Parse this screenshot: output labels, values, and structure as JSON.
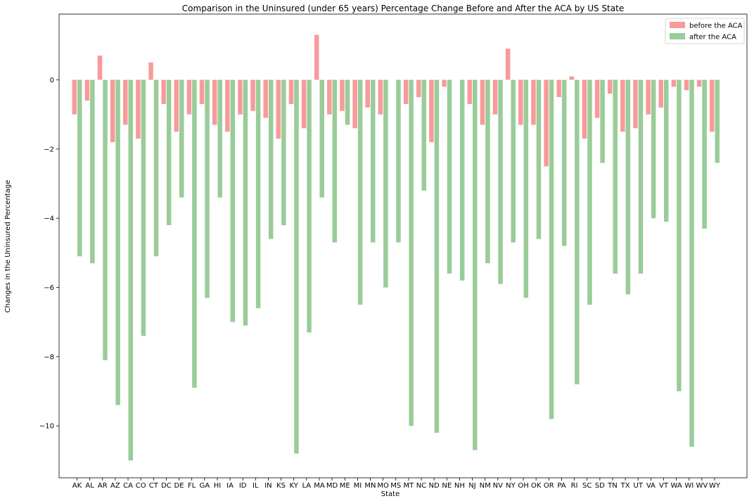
{
  "chart_data": {
    "type": "bar",
    "title": "Comparison in the Uninsured (under 65 years) Percentage Change Before and After the ACA by US State",
    "xlabel": "State",
    "ylabel": "Changes in the Uninsured Percentage",
    "ylim": [
      -11.5,
      1.9
    ],
    "yticks": [
      0,
      -2,
      -4,
      -6,
      -8,
      -10
    ],
    "grid": false,
    "legend_position": "top-right",
    "categories": [
      "AK",
      "AL",
      "AR",
      "AZ",
      "CA",
      "CO",
      "CT",
      "DC",
      "DE",
      "FL",
      "GA",
      "HI",
      "IA",
      "ID",
      "IL",
      "IN",
      "KS",
      "KY",
      "LA",
      "MA",
      "MD",
      "ME",
      "MI",
      "MN",
      "MO",
      "MS",
      "MT",
      "NC",
      "ND",
      "NE",
      "NH",
      "NJ",
      "NM",
      "NV",
      "NY",
      "OH",
      "OK",
      "OR",
      "PA",
      "RI",
      "SC",
      "SD",
      "TN",
      "TX",
      "UT",
      "VA",
      "VT",
      "WA",
      "WI",
      "WV",
      "WY"
    ],
    "series": [
      {
        "name": "before the ACA",
        "color": "#f89a9a",
        "values": [
          -1.0,
          -0.6,
          0.7,
          -1.8,
          -1.3,
          -1.7,
          0.5,
          -0.7,
          -1.5,
          -1.0,
          -0.7,
          -1.3,
          -1.5,
          -1.0,
          -0.9,
          -1.1,
          -1.7,
          -0.7,
          -1.4,
          1.3,
          -1.0,
          -0.9,
          -1.4,
          -0.8,
          -1.0,
          0.0,
          -0.7,
          -0.5,
          -1.8,
          -0.2,
          0.0,
          -0.7,
          -1.3,
          -1.0,
          0.9,
          -1.3,
          -1.3,
          -2.5,
          -0.5,
          0.1,
          -1.7,
          -1.1,
          -0.4,
          -1.5,
          -1.4,
          -1.0,
          -0.8,
          -0.2,
          -0.3,
          -0.2,
          -1.5
        ]
      },
      {
        "name": "after the ACA",
        "color": "#99cc99",
        "values": [
          -5.1,
          -5.3,
          -8.1,
          -9.4,
          -11.0,
          -7.4,
          -5.1,
          -4.2,
          -3.4,
          -8.9,
          -6.3,
          -3.4,
          -7.0,
          -7.1,
          -6.6,
          -4.6,
          -4.2,
          -10.8,
          -7.3,
          -3.4,
          -4.7,
          -1.3,
          -6.5,
          -4.7,
          -6.0,
          -4.7,
          -10.0,
          -3.2,
          -10.2,
          -5.6,
          -5.8,
          -10.7,
          -5.3,
          -5.9,
          -4.7,
          -6.3,
          -4.6,
          -9.8,
          -4.8,
          -8.8,
          -6.5,
          -2.4,
          -5.6,
          -6.2,
          -5.6,
          -4.0,
          -4.1,
          -9.0,
          -10.6,
          -4.3,
          -2.4
        ]
      }
    ]
  }
}
